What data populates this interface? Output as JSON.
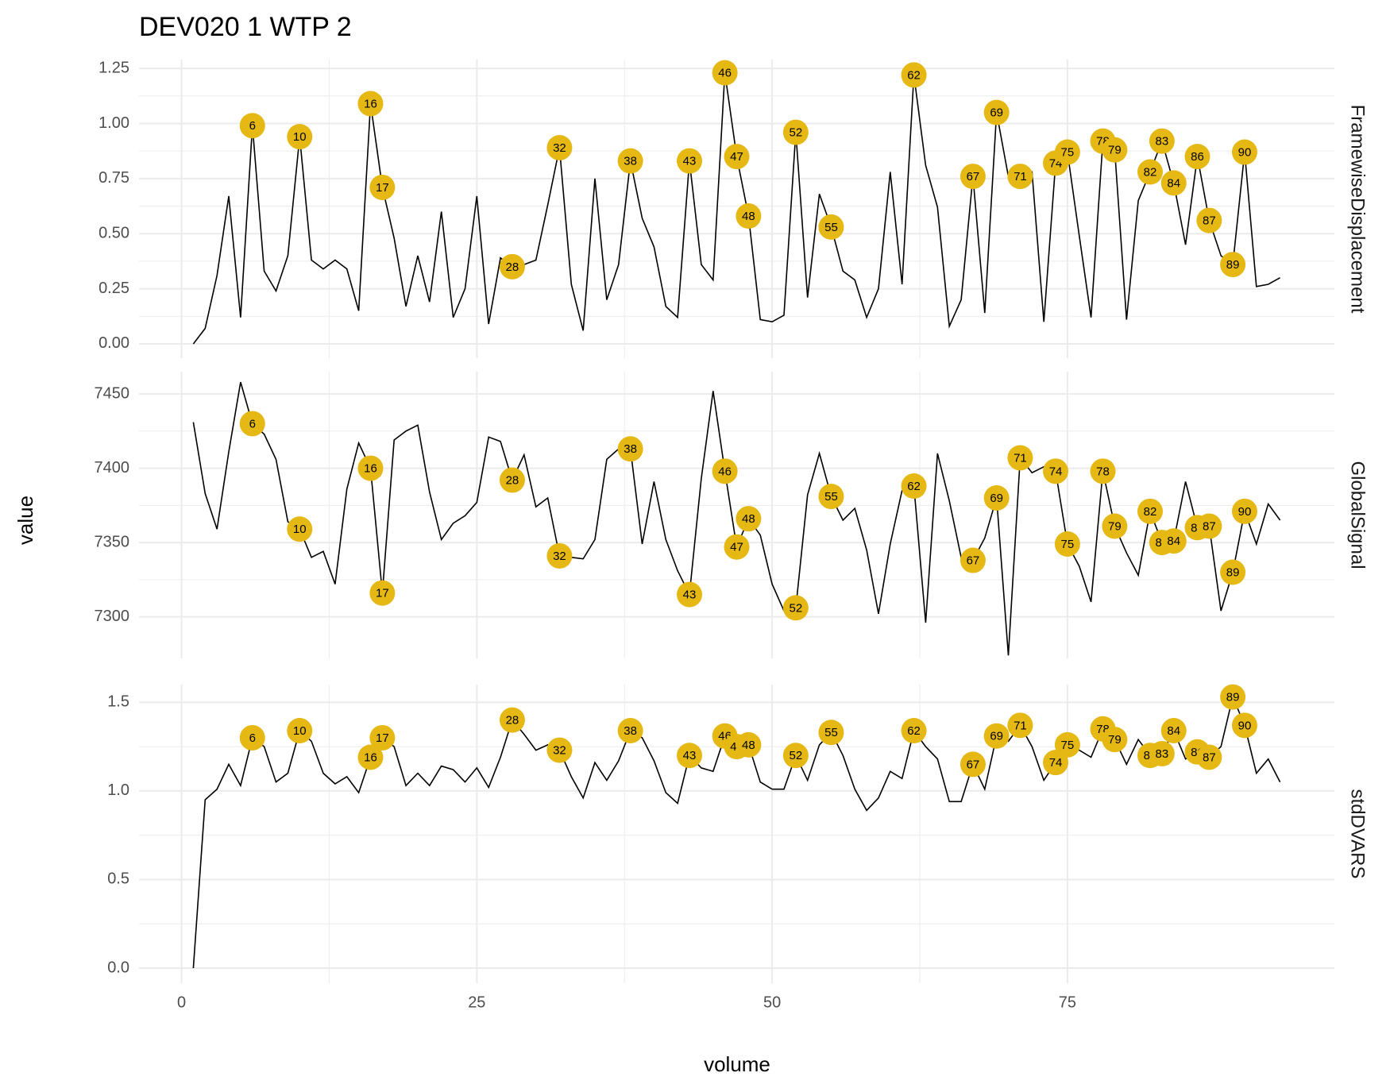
{
  "chart_data": {
    "type": "line",
    "title": "DEV020  1  WTP  2",
    "x_label": "volume",
    "y_label": "value",
    "line_color": "#000000",
    "point_color": "#e6b814",
    "grid": true,
    "x": [
      1,
      2,
      3,
      4,
      5,
      6,
      7,
      8,
      9,
      10,
      11,
      12,
      13,
      14,
      15,
      16,
      17,
      18,
      19,
      20,
      21,
      22,
      23,
      24,
      25,
      26,
      27,
      28,
      29,
      30,
      31,
      32,
      33,
      34,
      35,
      36,
      37,
      38,
      39,
      40,
      41,
      42,
      43,
      44,
      45,
      46,
      47,
      48,
      49,
      50,
      51,
      52,
      53,
      54,
      55,
      56,
      57,
      58,
      59,
      60,
      61,
      62,
      63,
      64,
      65,
      66,
      67,
      68,
      69,
      70,
      71,
      72,
      73,
      74,
      75,
      76,
      77,
      78,
      79,
      80,
      81,
      82,
      83,
      84,
      85,
      86,
      87,
      88,
      89,
      90,
      91,
      92,
      93
    ],
    "xlim": [
      -3.6,
      97.6
    ],
    "xticks": [
      0,
      25,
      50,
      75
    ],
    "highlights": [
      6,
      10,
      16,
      17,
      28,
      32,
      38,
      43,
      46,
      47,
      48,
      52,
      55,
      62,
      67,
      69,
      71,
      74,
      75,
      78,
      79,
      82,
      83,
      84,
      86,
      87,
      89,
      90
    ],
    "facets": [
      {
        "name": "FramewiseDisplacement",
        "ylim": [
          -0.065,
          1.29
        ],
        "yticks": [
          {
            "value": 0,
            "label": "0.00"
          },
          0.25,
          {
            "value": 0.5,
            "label": "0.50"
          },
          0.75,
          {
            "value": 1,
            "label": "1.00"
          },
          1.25
        ],
        "values": [
          0.0,
          0.07,
          0.31,
          0.67,
          0.12,
          0.99,
          0.33,
          0.24,
          0.4,
          0.94,
          0.38,
          0.34,
          0.38,
          0.34,
          0.15,
          1.09,
          0.71,
          0.48,
          0.17,
          0.4,
          0.19,
          0.6,
          0.12,
          0.25,
          0.67,
          0.09,
          0.39,
          0.35,
          0.36,
          0.38,
          0.63,
          0.89,
          0.27,
          0.06,
          0.75,
          0.2,
          0.36,
          0.83,
          0.57,
          0.44,
          0.17,
          0.12,
          0.83,
          0.36,
          0.29,
          1.23,
          0.85,
          0.58,
          0.11,
          0.1,
          0.13,
          0.96,
          0.21,
          0.68,
          0.53,
          0.33,
          0.29,
          0.12,
          0.25,
          0.78,
          0.27,
          1.22,
          0.81,
          0.62,
          0.08,
          0.2,
          0.76,
          0.14,
          1.05,
          0.76,
          0.76,
          0.78,
          0.1,
          0.82,
          0.87,
          0.49,
          0.12,
          0.92,
          0.88,
          0.11,
          0.65,
          0.78,
          0.92,
          0.73,
          0.45,
          0.85,
          0.56,
          0.4,
          0.36,
          0.87,
          0.26,
          0.27,
          0.3
        ]
      },
      {
        "name": "GlobalSignal",
        "ylim": [
          7272,
          7465
        ],
        "yticks": [
          7300,
          7350,
          7400,
          7450
        ],
        "values": [
          7431,
          7383,
          7359,
          7411,
          7458,
          7430,
          7423,
          7406,
          7364,
          7359,
          7340,
          7344,
          7322,
          7386,
          7417,
          7400,
          7316,
          7419,
          7425,
          7429,
          7384,
          7352,
          7363,
          7368,
          7377,
          7421,
          7418,
          7392,
          7409,
          7374,
          7380,
          7341,
          7340,
          7339,
          7352,
          7406,
          7413,
          7413,
          7349,
          7391,
          7352,
          7331,
          7315,
          7393,
          7452,
          7398,
          7347,
          7366,
          7355,
          7322,
          7304,
          7306,
          7382,
          7410,
          7381,
          7365,
          7373,
          7345,
          7302,
          7349,
          7385,
          7388,
          7296,
          7410,
          7378,
          7340,
          7338,
          7353,
          7380,
          7274,
          7407,
          7397,
          7401,
          7398,
          7349,
          7334,
          7310,
          7398,
          7361,
          7343,
          7328,
          7371,
          7350,
          7351,
          7391,
          7360,
          7361,
          7304,
          7330,
          7371,
          7349,
          7376,
          7365
        ]
      },
      {
        "name": "stdDVARS",
        "ylim": [
          -0.085,
          1.6
        ],
        "yticks": [
          {
            "value": 0,
            "label": "0.0"
          },
          0.5,
          {
            "value": 1,
            "label": "1.0"
          },
          1.5
        ],
        "values": [
          0,
          0.95,
          1.01,
          1.15,
          1.03,
          1.3,
          1.25,
          1.05,
          1.1,
          1.34,
          1.28,
          1.1,
          1.04,
          1.08,
          0.99,
          1.19,
          1.3,
          1.25,
          1.03,
          1.1,
          1.03,
          1.14,
          1.12,
          1.05,
          1.13,
          1.02,
          1.19,
          1.4,
          1.32,
          1.23,
          1.26,
          1.23,
          1.08,
          0.96,
          1.16,
          1.06,
          1.17,
          1.34,
          1.3,
          1.17,
          0.99,
          0.93,
          1.2,
          1.13,
          1.11,
          1.31,
          1.25,
          1.26,
          1.05,
          1.01,
          1.01,
          1.2,
          1.06,
          1.26,
          1.33,
          1.2,
          1.01,
          0.89,
          0.96,
          1.11,
          1.07,
          1.34,
          1.25,
          1.18,
          0.94,
          0.94,
          1.15,
          1.01,
          1.31,
          1.28,
          1.37,
          1.25,
          1.06,
          1.16,
          1.26,
          1.23,
          1.19,
          1.35,
          1.29,
          1.15,
          1.29,
          1.2,
          1.21,
          1.34,
          1.18,
          1.22,
          1.19,
          1.25,
          1.53,
          1.37,
          1.1,
          1.18,
          1.05
        ]
      }
    ]
  }
}
